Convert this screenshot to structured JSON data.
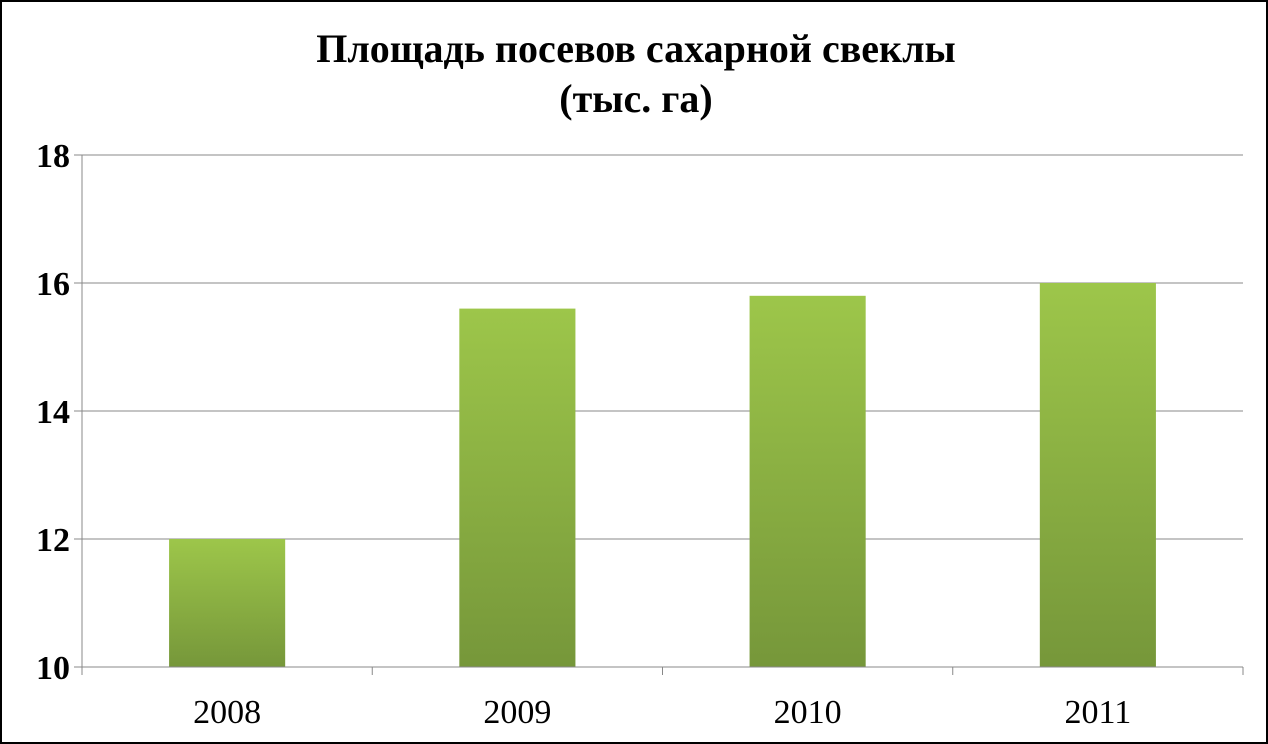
{
  "chart_data": {
    "type": "bar",
    "title_line1": "Площадь посевов сахарной свеклы",
    "title_line2": "(тыс. га)",
    "categories": [
      "2008",
      "2009",
      "2010",
      "2011"
    ],
    "values": [
      12,
      15.6,
      15.8,
      16
    ],
    "ylim": [
      10,
      18
    ],
    "yticks": [
      "10",
      "12",
      "14",
      "16",
      "18"
    ],
    "xlabel": "",
    "ylabel": "",
    "grid": true,
    "legend": "none",
    "bar_color_top": "#9dc64a",
    "bar_color_bottom": "#76973a",
    "grid_color": "#888888"
  }
}
